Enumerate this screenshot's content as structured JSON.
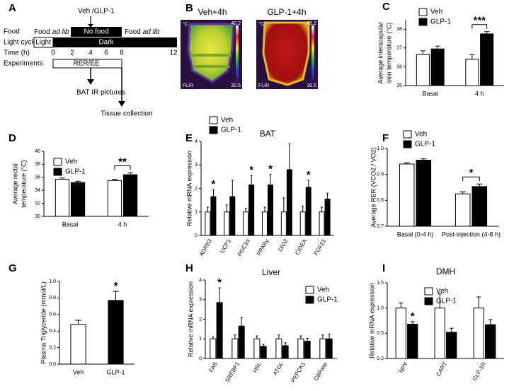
{
  "panels": {
    "A": {
      "label": "A",
      "injection": "Veh /GLP-1",
      "food": "Food",
      "food_left": [
        "Food",
        "ad lib"
      ],
      "no_food": "No food",
      "food_right": [
        "Food",
        "ad lib"
      ],
      "light_cycle": "Light cycle",
      "light": "Light",
      "dark": "Dark",
      "time": "Time (h)",
      "time_ticks": [
        "0",
        "2",
        "4",
        "6",
        "8",
        "12"
      ],
      "experiments": "Experiments",
      "rer": "RER/EE",
      "bat_ir": "BAT IR pictures",
      "tissue": "Tissue collection"
    },
    "B": {
      "label": "B",
      "left_title": "Veh+4h",
      "right_title": "GLP-1+4h",
      "unit": "°C",
      "scale_max": "40.2",
      "scale_min": "30.5",
      "brand": "FLIR"
    }
  },
  "chart_data": [
    {
      "type": "bar",
      "label": "C",
      "ylabel": [
        "Average interscapular",
        "skin temperature (°C)"
      ],
      "categories": [
        "Basal",
        "4 h"
      ],
      "series": [
        {
          "name": "Veh",
          "color": "#ffffff",
          "values": [
            36.65,
            36.4
          ],
          "errors": [
            0.2,
            0.25
          ]
        },
        {
          "name": "GLP-1",
          "color": "#000000",
          "values": [
            36.95,
            37.75
          ],
          "errors": [
            0.15,
            0.12
          ]
        }
      ],
      "significance": [
        null,
        "***"
      ],
      "ylim": [
        35,
        38.5
      ],
      "yticks": [
        35,
        36,
        37,
        38
      ]
    },
    {
      "type": "bar",
      "label": "D",
      "ylabel": [
        "Average rectal",
        "temperature (°C)"
      ],
      "categories": [
        "Basal",
        "4 h"
      ],
      "series": [
        {
          "name": "Veh",
          "color": "#ffffff",
          "values": [
            35.7,
            35.5
          ],
          "errors": [
            0.2,
            0.2
          ]
        },
        {
          "name": "GLP-1",
          "color": "#000000",
          "values": [
            35.2,
            36.4
          ],
          "errors": [
            0.2,
            0.3
          ]
        }
      ],
      "significance": [
        null,
        "**"
      ],
      "ylim": [
        30,
        40
      ],
      "yticks": [
        30,
        32,
        34,
        36,
        38,
        40
      ]
    },
    {
      "type": "bar",
      "label": "E",
      "title": "BAT",
      "ylabel": [
        "Relative mRNA expression"
      ],
      "categories": [
        "ADRB3",
        "UCP1",
        "PGC1α",
        "PPARγ",
        "DIO2",
        "CIDEA",
        "FGF21"
      ],
      "series": [
        {
          "name": "Veh",
          "color": "#ffffff",
          "values": [
            1,
            1,
            1,
            1,
            1,
            1,
            1
          ],
          "errors": [
            0.2,
            0.3,
            0.15,
            0.2,
            0.6,
            0.25,
            0.2
          ]
        },
        {
          "name": "GLP-1",
          "color": "#000000",
          "values": [
            1.65,
            1.65,
            2.15,
            2.15,
            2.8,
            2.05,
            1.55
          ],
          "errors": [
            0.3,
            0.7,
            0.4,
            0.45,
            1.1,
            0.3,
            0.25
          ]
        }
      ],
      "significance": [
        "*",
        null,
        "*",
        "*",
        null,
        "*",
        null
      ],
      "ylim": [
        0,
        4
      ],
      "yticks": [
        0,
        1,
        2,
        3,
        4
      ]
    },
    {
      "type": "bar",
      "label": "F",
      "ylabel": [
        "Average RER (VCO2 / VO2)"
      ],
      "categories": [
        "Basal (0-4 h)",
        "Post-injection (4-8 h)"
      ],
      "series": [
        {
          "name": "Veh",
          "color": "#ffffff",
          "values": [
            0.94,
            0.825
          ],
          "errors": [
            0.005,
            0.008
          ]
        },
        {
          "name": "GLP-1",
          "color": "#000000",
          "values": [
            0.955,
            0.853
          ],
          "errors": [
            0.005,
            0.01
          ]
        }
      ],
      "significance": [
        null,
        "*"
      ],
      "ylim": [
        0.7,
        1.0
      ],
      "yticks": [
        0.7,
        0.8,
        0.9,
        {
          "value": 1.0,
          "label": "1.0"
        }
      ]
    },
    {
      "type": "bar",
      "label": "G",
      "ylabel": [
        "Plasma Triglyceride (mmol/L)"
      ],
      "categories": [
        "Veh",
        "GLP-1"
      ],
      "values": [
        0.48,
        0.77
      ],
      "errors": [
        0.05,
        0.11
      ],
      "colors": [
        "#ffffff",
        "#000000"
      ],
      "significance": [
        null,
        "*"
      ],
      "ylim": [
        0,
        1.0
      ],
      "yticks": [
        {
          "value": 0,
          "label": "0.0"
        },
        0.2,
        0.4,
        0.6,
        0.8,
        {
          "value": 1.0,
          "label": "1.0"
        }
      ]
    },
    {
      "type": "bar",
      "label": "H",
      "title": "Liver",
      "ylabel": [
        "Relative mRNA expression"
      ],
      "categories": [
        "FAS",
        "SREBP1",
        "HSL",
        "ATGL",
        "PEPCK1",
        "G6Pase"
      ],
      "series": [
        {
          "name": "Veh",
          "color": "#ffffff",
          "values": [
            1,
            1,
            1,
            1,
            1,
            1
          ],
          "errors": [
            0.1,
            0.2,
            0.15,
            0.2,
            0.15,
            0.2
          ]
        },
        {
          "name": "GLP-1",
          "color": "#000000",
          "values": [
            2.85,
            1.65,
            0.62,
            0.65,
            0.88,
            1.0
          ],
          "errors": [
            0.75,
            0.45,
            0.1,
            0.15,
            0.15,
            0.25
          ]
        }
      ],
      "significance": [
        "*",
        null,
        null,
        null,
        null,
        null
      ],
      "ylim": [
        0,
        4
      ],
      "yticks": [
        0,
        1,
        2,
        3,
        4
      ]
    },
    {
      "type": "bar",
      "label": "I",
      "title": "DMH",
      "ylabel": [
        "Relative mRNA expression"
      ],
      "categories": [
        "NPY",
        "CART",
        "GLP-1R"
      ],
      "series": [
        {
          "name": "Veh",
          "color": "#ffffff",
          "values": [
            1,
            1,
            1
          ],
          "errors": [
            0.1,
            0.28,
            0.22
          ]
        },
        {
          "name": "GLP-1",
          "color": "#000000",
          "values": [
            0.68,
            0.52,
            0.67
          ],
          "errors": [
            0.05,
            0.08,
            0.1
          ]
        }
      ],
      "significance": [
        "*",
        null,
        null
      ],
      "ylim": [
        0,
        1.5
      ],
      "yticks": [
        {
          "value": 0,
          "label": "0.0"
        },
        0.5,
        {
          "value": 1.0,
          "label": "1.0"
        },
        1.5
      ]
    }
  ]
}
